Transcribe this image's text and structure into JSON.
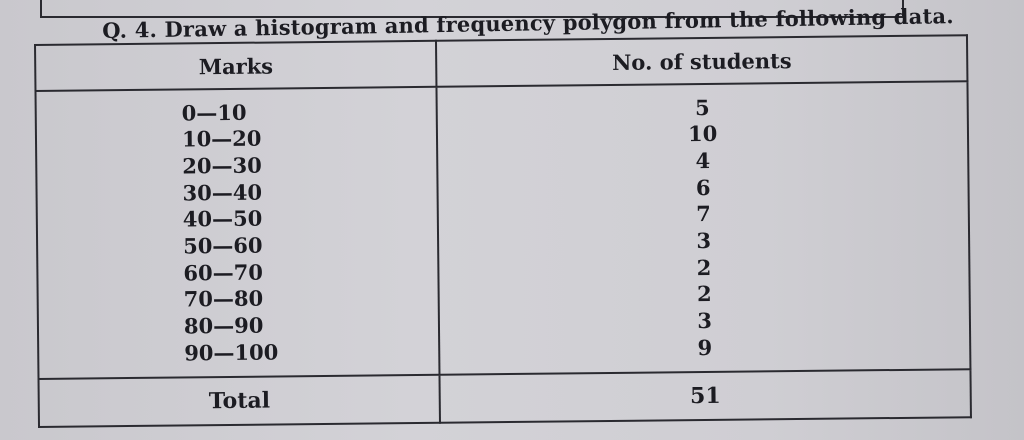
{
  "question": "Q. 4. Draw a histogram and frequency polygon from the following data.",
  "table": {
    "headers": {
      "marks": "Marks",
      "students": "No. of students"
    },
    "rows": [
      {
        "marks": "0—10",
        "students": "5"
      },
      {
        "marks": "10—20",
        "students": "10"
      },
      {
        "marks": "20—30",
        "students": "4"
      },
      {
        "marks": "30—40",
        "students": "6"
      },
      {
        "marks": "40—50",
        "students": "7"
      },
      {
        "marks": "50—60",
        "students": "3"
      },
      {
        "marks": "60—70",
        "students": "2"
      },
      {
        "marks": "70—80",
        "students": "2"
      },
      {
        "marks": "80—90",
        "students": "3"
      },
      {
        "marks": "90—100",
        "students": "9"
      }
    ],
    "total": {
      "label": "Total",
      "value": "51"
    }
  }
}
